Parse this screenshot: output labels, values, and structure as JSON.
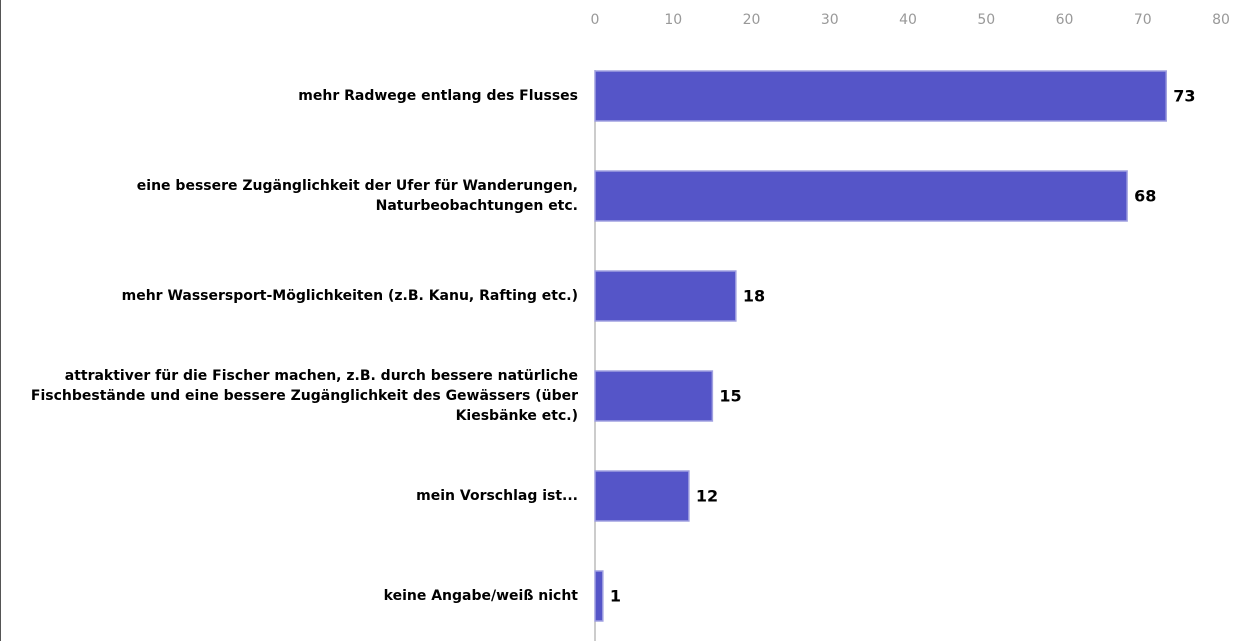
{
  "chart_data": {
    "type": "bar",
    "orientation": "horizontal",
    "categories": [
      "mehr Radwege entlang des Flusses",
      "eine bessere Zugänglichkeit der Ufer für Wanderungen, Naturbeobachtungen etc.",
      "mehr Wassersport-Möglichkeiten (z.B. Kanu, Rafting etc.)",
      "attraktiver für die Fischer machen, z.B. durch bessere natürliche Fischbestände und eine bessere Zugänglichkeit des Gewässers (über Kiesbänke etc.)",
      "mein Vorschlag ist...",
      "keine Angabe/weiß nicht"
    ],
    "values": [
      73,
      68,
      18,
      15,
      12,
      1
    ],
    "color": "#5555c8",
    "xlim": [
      0,
      80
    ],
    "xticks": [
      0,
      10,
      20,
      30,
      40,
      50,
      60,
      70,
      80
    ],
    "grid": false
  }
}
